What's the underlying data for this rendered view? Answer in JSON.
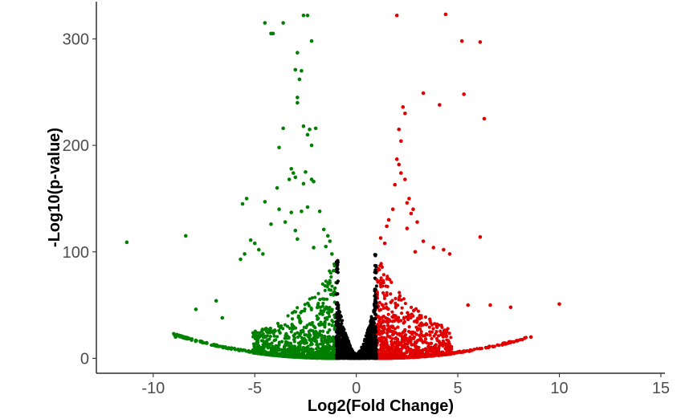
{
  "chart_data": {
    "type": "scatter",
    "title": "",
    "xlabel": "Log2(Fold Change)",
    "ylabel": "-Log10(p-value)",
    "xlim": [
      -12.8,
      15.2
    ],
    "ylim": [
      -14,
      335
    ],
    "x_ticks": [
      -10,
      -5,
      0,
      5,
      10,
      15
    ],
    "x_tick_labels": [
      "-10",
      "-5",
      "0",
      "5",
      "10",
      "15"
    ],
    "y_ticks": [
      0,
      100,
      200,
      300
    ],
    "y_tick_labels": [
      "0",
      "100",
      "200",
      "300"
    ],
    "grid": false,
    "legend": "none",
    "colors": {
      "down": "#008000",
      "up": "#e00000",
      "ns": "#000000"
    },
    "fold_change_threshold": 1,
    "series": [
      {
        "key": "down",
        "points": [
          [
            -11.3,
            109
          ],
          [
            -8.4,
            115
          ],
          [
            -7.9,
            46
          ],
          [
            -8.9,
            20
          ],
          [
            -6.9,
            54
          ],
          [
            -6.6,
            38
          ],
          [
            -5.4,
            150
          ],
          [
            -5.6,
            145
          ],
          [
            -5.2,
            111
          ],
          [
            -5.0,
            108
          ],
          [
            -5.7,
            93
          ],
          [
            -5.5,
            98
          ],
          [
            -4.5,
            315
          ],
          [
            -4.2,
            305
          ],
          [
            -4.1,
            305
          ],
          [
            -3.6,
            315
          ],
          [
            -2.6,
            322
          ],
          [
            -2.4,
            322
          ],
          [
            -2.2,
            298
          ],
          [
            -2.9,
            287
          ],
          [
            -3.0,
            271
          ],
          [
            -2.7,
            270
          ],
          [
            -2.8,
            262
          ],
          [
            -2.9,
            245
          ],
          [
            -2.9,
            240
          ],
          [
            -3.6,
            216
          ],
          [
            -3.8,
            198
          ],
          [
            -2.6,
            218
          ],
          [
            -2.3,
            215
          ],
          [
            -2.0,
            216
          ],
          [
            -2.4,
            210
          ],
          [
            -2.2,
            200
          ],
          [
            -3.2,
            178
          ],
          [
            -3.1,
            174
          ],
          [
            -3.0,
            170
          ],
          [
            -3.3,
            168
          ],
          [
            -2.5,
            175
          ],
          [
            -2.6,
            164
          ],
          [
            -3.9,
            160
          ],
          [
            -2.2,
            168
          ],
          [
            -2.1,
            166
          ],
          [
            -4.5,
            147
          ],
          [
            -3.8,
            140
          ],
          [
            -2.4,
            142
          ],
          [
            -2.7,
            138
          ],
          [
            -3.2,
            137
          ],
          [
            -3.5,
            128
          ],
          [
            -4.2,
            126
          ],
          [
            -1.8,
            138
          ],
          [
            -1.6,
            121
          ],
          [
            -3.0,
            120
          ],
          [
            -2.9,
            112
          ],
          [
            -2.1,
            104
          ],
          [
            -1.5,
            105
          ],
          [
            -1.4,
            115
          ],
          [
            -4.8,
            102
          ],
          [
            -4.6,
            98
          ],
          [
            -1.3,
            110
          ],
          [
            -1.2,
            98
          ]
        ]
      },
      {
        "key": "up",
        "points": [
          [
            2.0,
            322
          ],
          [
            4.4,
            323
          ],
          [
            5.2,
            298
          ],
          [
            6.1,
            297
          ],
          [
            5.3,
            248
          ],
          [
            3.3,
            249
          ],
          [
            4.1,
            238
          ],
          [
            6.3,
            225
          ],
          [
            2.3,
            236
          ],
          [
            2.4,
            230
          ],
          [
            2.1,
            215
          ],
          [
            2.2,
            204
          ],
          [
            2.0,
            187
          ],
          [
            2.1,
            182
          ],
          [
            2.2,
            174
          ],
          [
            2.4,
            168
          ],
          [
            1.9,
            163
          ],
          [
            2.6,
            150
          ],
          [
            2.5,
            146
          ],
          [
            2.8,
            140
          ],
          [
            2.7,
            136
          ],
          [
            1.8,
            140
          ],
          [
            1.6,
            130
          ],
          [
            6.1,
            114
          ],
          [
            7.6,
            48
          ],
          [
            10.0,
            51
          ],
          [
            6.6,
            50
          ],
          [
            5.5,
            50
          ],
          [
            8.6,
            20
          ],
          [
            2.5,
            122
          ],
          [
            3.0,
            128
          ],
          [
            1.5,
            124
          ],
          [
            3.3,
            110
          ],
          [
            4.6,
            98
          ],
          [
            4.3,
            102
          ],
          [
            3.8,
            104
          ],
          [
            1.2,
            113
          ],
          [
            1.4,
            108
          ],
          [
            2.9,
            100
          ]
        ]
      }
    ]
  }
}
